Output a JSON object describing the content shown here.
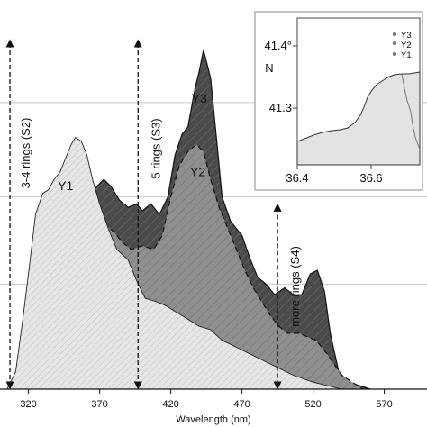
{
  "chart_data": [
    {
      "type": "area",
      "xlabel": "Wavelength (nm)",
      "x_ticks": [
        320,
        370,
        420,
        470,
        520,
        570
      ],
      "xlim": [
        300,
        600
      ],
      "grid": "horizontal",
      "series": [
        {
          "name": "Y3",
          "color": "#4a4a4a",
          "points": [
            [
              335,
              0.0
            ],
            [
              343,
              0.05
            ],
            [
              350,
              0.22
            ],
            [
              356,
              0.44
            ],
            [
              362,
              0.55
            ],
            [
              368,
              0.58
            ],
            [
              373,
              0.6
            ],
            [
              378,
              0.58
            ],
            [
              384,
              0.54
            ],
            [
              390,
              0.52
            ],
            [
              396,
              0.53
            ],
            [
              400,
              0.51
            ],
            [
              406,
              0.53
            ],
            [
              412,
              0.5
            ],
            [
              418,
              0.55
            ],
            [
              423,
              0.67
            ],
            [
              428,
              0.73
            ],
            [
              432,
              0.75
            ],
            [
              437,
              0.86
            ],
            [
              440,
              0.91
            ],
            [
              443,
              0.97
            ],
            [
              448,
              0.89
            ],
            [
              452,
              0.72
            ],
            [
              456,
              0.55
            ],
            [
              462,
              0.48
            ],
            [
              470,
              0.44
            ],
            [
              476,
              0.37
            ],
            [
              481,
              0.32
            ],
            [
              487,
              0.3
            ],
            [
              493,
              0.27
            ],
            [
              500,
              0.29
            ],
            [
              506,
              0.27
            ],
            [
              512,
              0.27
            ],
            [
              518,
              0.33
            ],
            [
              523,
              0.34
            ],
            [
              528,
              0.28
            ],
            [
              532,
              0.16
            ],
            [
              538,
              0.05
            ],
            [
              545,
              0.02
            ],
            [
              560,
              0.0
            ]
          ]
        },
        {
          "name": "Y2",
          "color": "#8f8f8f",
          "points": [
            [
              315,
              0.0
            ],
            [
              320,
              0.02
            ],
            [
              327,
              0.08
            ],
            [
              332,
              0.28
            ],
            [
              338,
              0.38
            ],
            [
              344,
              0.44
            ],
            [
              350,
              0.49
            ],
            [
              355,
              0.52
            ],
            [
              362,
              0.51
            ],
            [
              368,
              0.5
            ],
            [
              374,
              0.47
            ],
            [
              380,
              0.45
            ],
            [
              386,
              0.42
            ],
            [
              392,
              0.4
            ],
            [
              400,
              0.41
            ],
            [
              408,
              0.4
            ],
            [
              414,
              0.44
            ],
            [
              420,
              0.55
            ],
            [
              426,
              0.64
            ],
            [
              432,
              0.68
            ],
            [
              438,
              0.7
            ],
            [
              443,
              0.68
            ],
            [
              448,
              0.6
            ],
            [
              454,
              0.52
            ],
            [
              460,
              0.46
            ],
            [
              466,
              0.4
            ],
            [
              472,
              0.34
            ],
            [
              478,
              0.29
            ],
            [
              484,
              0.25
            ],
            [
              490,
              0.21
            ],
            [
              496,
              0.18
            ],
            [
              502,
              0.16
            ],
            [
              510,
              0.16
            ],
            [
              516,
              0.15
            ],
            [
              522,
              0.14
            ],
            [
              530,
              0.1
            ],
            [
              540,
              0.04
            ],
            [
              555,
              0.0
            ]
          ]
        },
        {
          "name": "Y1",
          "color": "#e6e6e6",
          "points": [
            [
              305,
              0.0
            ],
            [
              311,
              0.05
            ],
            [
              316,
              0.2
            ],
            [
              320,
              0.33
            ],
            [
              325,
              0.5
            ],
            [
              330,
              0.56
            ],
            [
              334,
              0.57
            ],
            [
              338,
              0.6
            ],
            [
              342,
              0.62
            ],
            [
              346,
              0.66
            ],
            [
              350,
              0.7
            ],
            [
              353,
              0.72
            ],
            [
              357,
              0.71
            ],
            [
              361,
              0.67
            ],
            [
              365,
              0.6
            ],
            [
              370,
              0.53
            ],
            [
              376,
              0.46
            ],
            [
              382,
              0.4
            ],
            [
              390,
              0.37
            ],
            [
              396,
              0.31
            ],
            [
              402,
              0.26
            ],
            [
              410,
              0.25
            ],
            [
              416,
              0.24
            ],
            [
              424,
              0.22
            ],
            [
              432,
              0.2
            ],
            [
              440,
              0.18
            ],
            [
              448,
              0.17
            ],
            [
              456,
              0.14
            ],
            [
              466,
              0.12
            ],
            [
              476,
              0.1
            ],
            [
              486,
              0.08
            ],
            [
              496,
              0.06
            ],
            [
              506,
              0.04
            ],
            [
              520,
              0.02
            ],
            [
              540,
              0.0
            ]
          ]
        }
      ],
      "annotations": [
        {
          "text": "3-4 rings (S2)",
          "x": 307,
          "range": [
            0.0,
            1.0
          ]
        },
        {
          "text": "5 rings (S3)",
          "x": 397,
          "range": [
            0.0,
            1.0
          ]
        },
        {
          "text": "more rings (S4)",
          "x": 495,
          "range": [
            0.0,
            0.53
          ]
        }
      ],
      "series_labels": [
        {
          "text": "Y1",
          "x": 346,
          "y": 0.57
        },
        {
          "text": "Y2",
          "x": 439,
          "y": 0.61
        },
        {
          "text": "Y3",
          "x": 440,
          "y": 0.82
        }
      ]
    },
    {
      "type": "map",
      "x_ticks": [
        36.4,
        36.6
      ],
      "y_ticks": [
        "41.4°",
        "41.3"
      ],
      "y_axis_letter": "N",
      "legend": [
        "Y3",
        "Y2",
        "Y1"
      ],
      "land_color": "#e3e3e3"
    }
  ]
}
